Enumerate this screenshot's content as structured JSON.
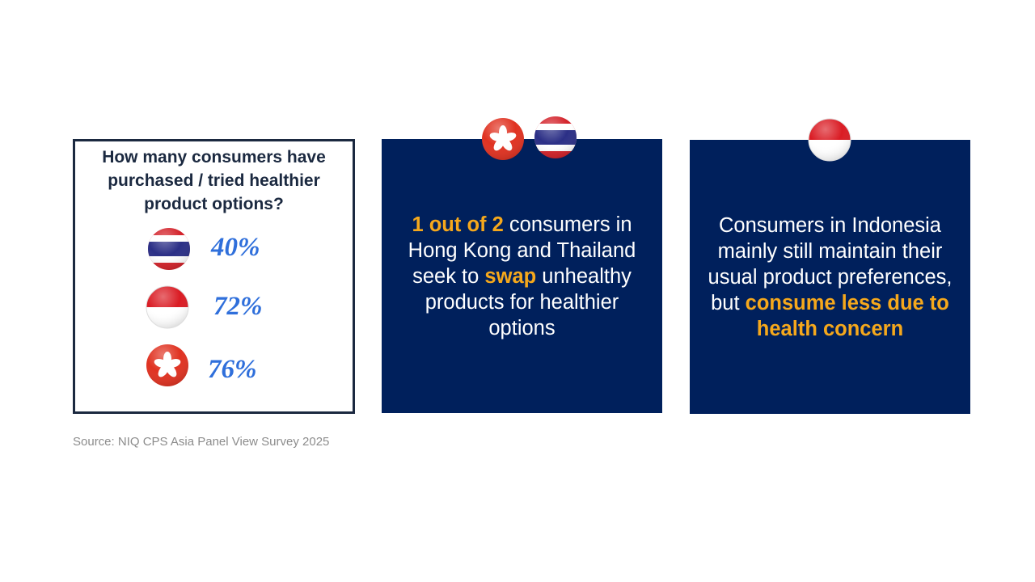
{
  "question": "How many consumers have purchased / tried healthier product options?",
  "stats": [
    {
      "value": "40%"
    },
    {
      "value": "72%"
    },
    {
      "value": "76%"
    }
  ],
  "middle_box": {
    "segments": [
      {
        "text": "1 out of 2",
        "highlight": true
      },
      {
        "text": " consumers in Hong Kong and Thailand seek to ",
        "highlight": false
      },
      {
        "text": "swap",
        "highlight": true
      },
      {
        "text": " unhealthy products for healthier options",
        "highlight": false
      }
    ]
  },
  "right_box": {
    "segments": [
      {
        "text": "Consumers in Indonesia mainly still maintain their usual product preferences, but ",
        "highlight": false
      },
      {
        "text": "consume less due to health concern",
        "highlight": true
      }
    ]
  },
  "source": "Source: NIQ CPS Asia Panel View Survey 2025"
}
